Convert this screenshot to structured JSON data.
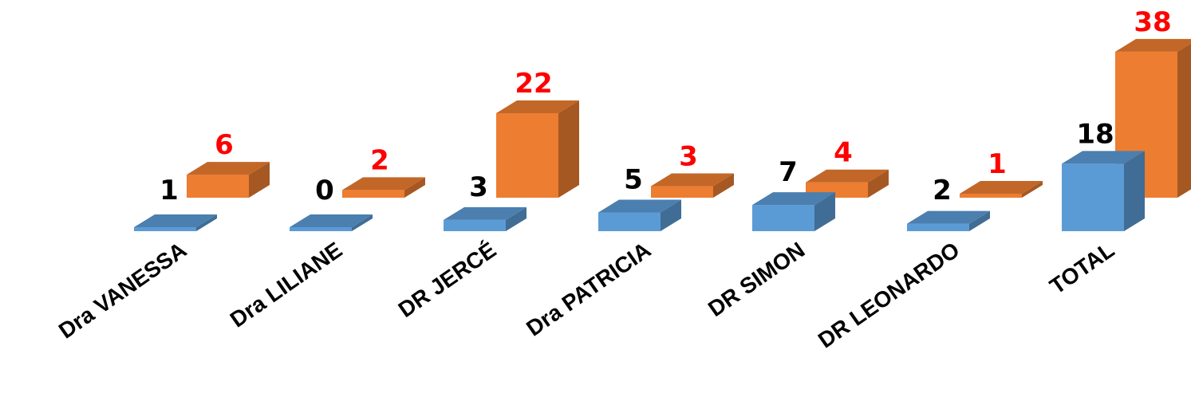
{
  "chart_data": {
    "type": "bar",
    "style": "3d-clustered",
    "categories": [
      "Dra VANESSA",
      "Dra LILIANE",
      "DR JERCÉ",
      "Dra PATRICIA",
      "DR SIMON",
      "DR LEONARDO",
      "TOTAL"
    ],
    "series": [
      {
        "values": [
          1,
          0,
          3,
          5,
          7,
          2,
          18
        ],
        "color": "#5B9BD5",
        "label_color": "#000000"
      },
      {
        "values": [
          6,
          2,
          22,
          3,
          4,
          1,
          38
        ],
        "color": "#ED7D31",
        "label_color": "#FF0000"
      }
    ],
    "title": "",
    "xlabel": "",
    "ylabel": "",
    "grid": false,
    "legend": false
  }
}
